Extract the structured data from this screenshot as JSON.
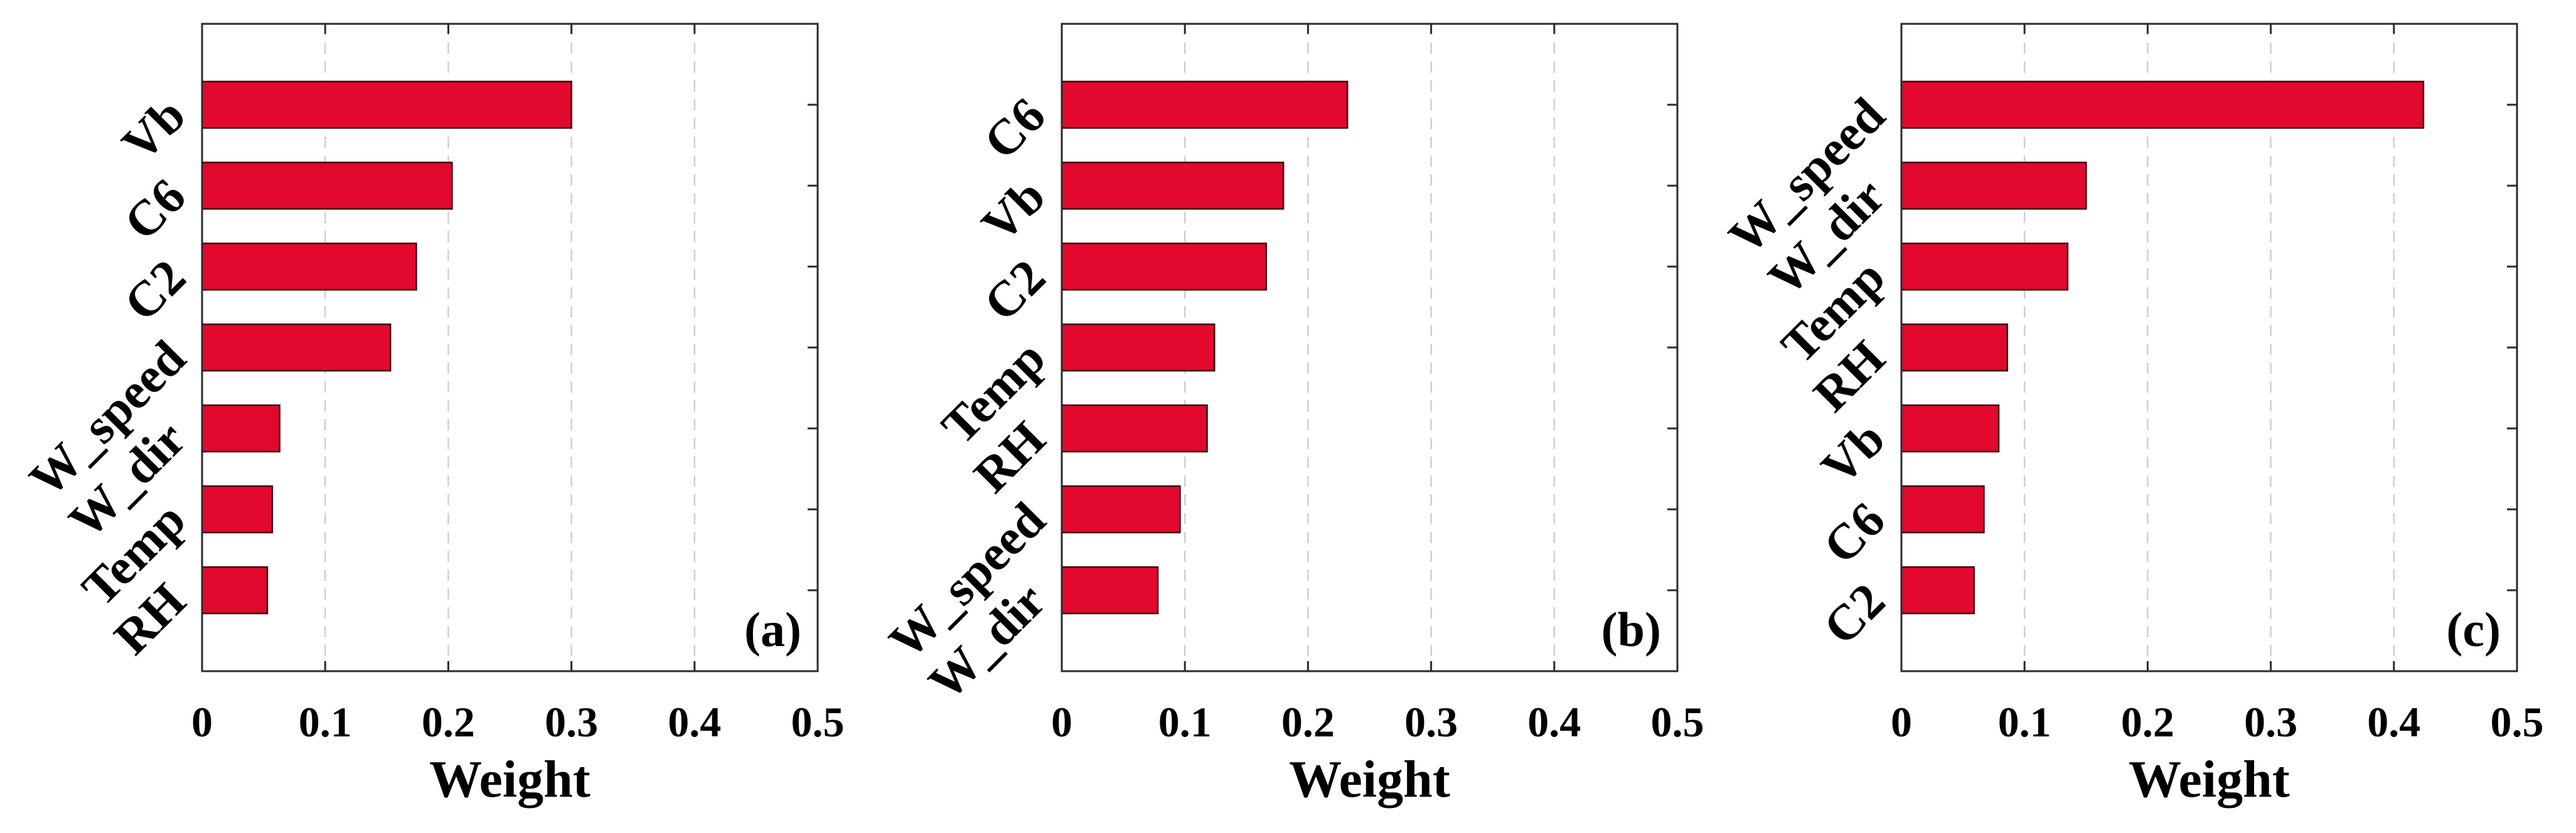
{
  "chart_data": [
    {
      "type": "bar",
      "orientation": "horizontal",
      "panel_label": "(a)",
      "categories": [
        "Vb",
        "C6",
        "C2",
        "W_speed",
        "W_dir",
        "Temp",
        "RH"
      ],
      "values": [
        0.3,
        0.203,
        0.174,
        0.153,
        0.063,
        0.057,
        0.053
      ],
      "xlabel": "Weight",
      "xlim": [
        0,
        0.5
      ],
      "xticks": [
        0,
        0.1,
        0.2,
        0.3,
        0.4,
        0.5
      ],
      "xtick_labels": [
        "0",
        "0.1",
        "0.2",
        "0.3",
        "0.4",
        "0.5"
      ],
      "grid": "vertical dashed",
      "bar_color": "#e3082e"
    },
    {
      "type": "bar",
      "orientation": "horizontal",
      "panel_label": "(b)",
      "categories": [
        "C6",
        "Vb",
        "C2",
        "Temp",
        "RH",
        "W_speed",
        "W_dir"
      ],
      "values": [
        0.232,
        0.18,
        0.166,
        0.124,
        0.118,
        0.096,
        0.078
      ],
      "xlabel": "Weight",
      "xlim": [
        0,
        0.5
      ],
      "xticks": [
        0,
        0.1,
        0.2,
        0.3,
        0.4,
        0.5
      ],
      "xtick_labels": [
        "0",
        "0.1",
        "0.2",
        "0.3",
        "0.4",
        "0.5"
      ],
      "grid": "vertical dashed",
      "bar_color": "#e3082e"
    },
    {
      "type": "bar",
      "orientation": "horizontal",
      "panel_label": "(c)",
      "categories": [
        "W_speed",
        "W_dir",
        "Temp",
        "RH",
        "Vb",
        "C6",
        "C2"
      ],
      "values": [
        0.424,
        0.15,
        0.135,
        0.086,
        0.079,
        0.067,
        0.059
      ],
      "xlabel": "Weight",
      "xlim": [
        0,
        0.5
      ],
      "xticks": [
        0,
        0.1,
        0.2,
        0.3,
        0.4,
        0.5
      ],
      "xtick_labels": [
        "0",
        "0.1",
        "0.2",
        "0.3",
        "0.4",
        "0.5"
      ],
      "grid": "vertical dashed",
      "bar_color": "#e3082e"
    }
  ]
}
